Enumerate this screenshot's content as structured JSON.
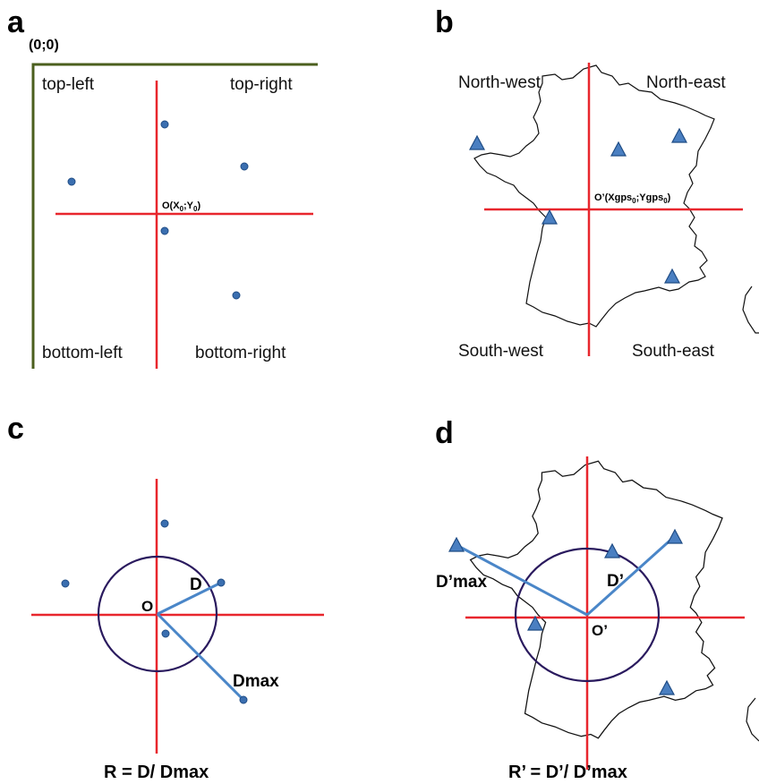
{
  "panels": {
    "a": {
      "letter": "a",
      "origin_label": "(0;0)",
      "center_label": "O(X",
      "center_sub0": "0",
      "center_mid": ";Y",
      "center_sub1": "0",
      "center_close": ")",
      "quadrants": {
        "top_left": "top-left",
        "top_right": "top-right",
        "bottom_left": "bottom-left",
        "bottom_right": "bottom-right"
      }
    },
    "b": {
      "letter": "b",
      "center_label": "O’(Xgps",
      "center_sub0": "0",
      "center_mid": ";Ygps",
      "center_sub1": "0",
      "center_close": ")",
      "quadrants": {
        "north_west": "North-west",
        "north_east": "North-east",
        "south_west": "South-west",
        "south_east": "South-east"
      }
    },
    "c": {
      "letter": "c",
      "center_label": "O",
      "d_label": "D",
      "dmax_label": "Dmax",
      "formula": "R = D/ Dmax"
    },
    "d": {
      "letter": "d",
      "center_label": "O’",
      "d_label": "D’",
      "dmax_label": "D’max",
      "formula": "R’ = D’/ D’max"
    }
  },
  "colors": {
    "axis": "#e8262d",
    "frame": "#4b5f1e",
    "points": "#3b6fb0",
    "rays": "#4a86c8",
    "circle": "#2a1a5e"
  },
  "icons": {
    "point": "circle-dot",
    "station": "triangle-marker"
  }
}
